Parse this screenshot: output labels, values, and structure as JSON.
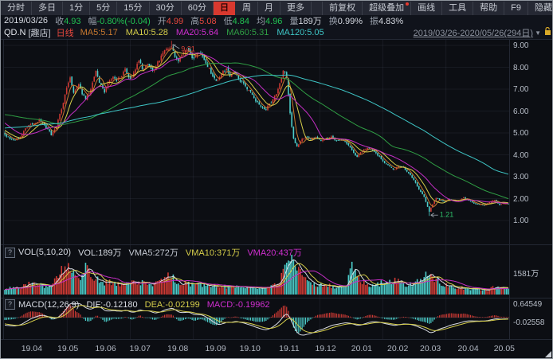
{
  "toolbar": {
    "periods": [
      "分时",
      "多日",
      "1分",
      "5分",
      "15分",
      "30分",
      "60分",
      "日",
      "周",
      "月",
      "更多"
    ],
    "active_period": "日",
    "right_items": [
      "前复权",
      "超级叠加",
      "画线",
      "工具",
      "帮助",
      "F9",
      "隐藏"
    ],
    "badge_on": "超级叠加"
  },
  "info_bar": {
    "date": "2019/03/26",
    "fields": [
      {
        "label": "收",
        "value": "4.93",
        "color": "green"
      },
      {
        "label": "幅",
        "value": "-0.80%(-0.04)",
        "color": "green"
      },
      {
        "label": "开",
        "value": "4.99",
        "color": "red"
      },
      {
        "label": "高",
        "value": "5.08",
        "color": "red"
      },
      {
        "label": "低",
        "value": "4.84",
        "color": "green"
      },
      {
        "label": "均",
        "value": "4.96",
        "color": "green"
      },
      {
        "label": "量",
        "value": "189万",
        "color": "white"
      },
      {
        "label": "换",
        "value": "0.99%",
        "color": "white"
      },
      {
        "label": "振",
        "value": "4.83%",
        "color": "white"
      }
    ]
  },
  "stock_header": {
    "symbol": "QD.N",
    "name": "[趣店]",
    "period_label": "日线",
    "ma_labels": [
      {
        "text": "MA5:5.17",
        "color": "#c8792f"
      },
      {
        "text": "MA10:5.28",
        "color": "#d6ce4a"
      },
      {
        "text": "MA20:5.64",
        "color": "#d02ed0"
      },
      {
        "text": "MA60:5.31",
        "color": "#2f9e44"
      },
      {
        "text": "MA120:5.05",
        "color": "#3ec6c6"
      }
    ],
    "date_range": "2019/03/26-2020/05/26(294日)",
    "dropdown_icon": "▼"
  },
  "volume_pane": {
    "help_icon": "?",
    "title": "VOL(5,10,20)",
    "labels": [
      {
        "text": "VOL:189万",
        "color": "#d6dae2"
      },
      {
        "text": "VMA5:272万",
        "color": "#c4c9d2"
      },
      {
        "text": "VMA10:371万",
        "color": "#d6ce4a"
      },
      {
        "text": "VMA20:437万",
        "color": "#d02ed0"
      }
    ],
    "right_label": "1581万"
  },
  "macd_pane": {
    "help_icon": "?",
    "title": "MACD(12,26,9)",
    "labels": [
      {
        "text": "DIF:-0.12180",
        "color": "#d8dbe2"
      },
      {
        "text": "DEA:-0.02199",
        "color": "#d6ce4a"
      },
      {
        "text": "MACD:-0.19962",
        "color": "#d02ed0"
      }
    ],
    "right_labels": [
      "0.64549",
      "-0.02558"
    ]
  },
  "chart_data": {
    "type": "candlestick",
    "title": "QD.N 趣店 日线 2019/03/26-2020/05/26",
    "days": 294,
    "price_axis": {
      "min": 1,
      "max": 9,
      "ticks": [
        "9.00",
        "8.00",
        "7.00",
        "6.00",
        "5.00",
        "4.00",
        "3.00",
        "2.00",
        "1.00"
      ]
    },
    "x_labels": [
      {
        "label": "19.04",
        "day": 4
      },
      {
        "label": "19.05",
        "day": 25
      },
      {
        "label": "19.06",
        "day": 47
      },
      {
        "label": "19.07",
        "day": 67
      },
      {
        "label": "19.08",
        "day": 89
      },
      {
        "label": "19.09",
        "day": 111
      },
      {
        "label": "19.10",
        "day": 131
      },
      {
        "label": "19.11",
        "day": 154
      },
      {
        "label": "19.12",
        "day": 175
      },
      {
        "label": "20.01",
        "day": 196
      },
      {
        "label": "20.02",
        "day": 217
      },
      {
        "label": "20.03",
        "day": 236
      },
      {
        "label": "20.04",
        "day": 258
      },
      {
        "label": "20.05",
        "day": 279
      }
    ],
    "first_candle": {
      "open": 4.99,
      "high": 5.08,
      "low": 4.84,
      "close": 4.93
    },
    "prehistory_anchors": [
      [
        -120,
        4.1
      ],
      [
        -90,
        4.5
      ],
      [
        -60,
        5.3
      ],
      [
        -40,
        6.2
      ],
      [
        -30,
        6.45
      ],
      [
        -20,
        6.1
      ],
      [
        -12,
        5.6
      ],
      [
        -6,
        5.15
      ],
      [
        -1,
        4.98
      ]
    ],
    "price_anchors": [
      [
        0,
        4.93
      ],
      [
        2,
        4.8
      ],
      [
        5,
        4.62
      ],
      [
        8,
        4.75
      ],
      [
        11,
        5.05
      ],
      [
        14,
        5.35
      ],
      [
        17,
        5.5
      ],
      [
        20,
        5.62
      ],
      [
        23,
        5.3
      ],
      [
        25,
        5.15
      ],
      [
        27,
        4.92
      ],
      [
        30,
        5.3
      ],
      [
        33,
        6.1
      ],
      [
        36,
        7.1
      ],
      [
        38,
        7.45
      ],
      [
        40,
        6.9
      ],
      [
        43,
        7.15
      ],
      [
        45,
        6.75
      ],
      [
        47,
        6.55
      ],
      [
        50,
        7.0
      ],
      [
        53,
        7.8
      ],
      [
        55,
        7.35
      ],
      [
        58,
        6.9
      ],
      [
        60,
        7.3
      ],
      [
        63,
        7.65
      ],
      [
        65,
        7.3
      ],
      [
        67,
        7.5
      ],
      [
        70,
        7.9
      ],
      [
        73,
        7.5
      ],
      [
        75,
        7.75
      ],
      [
        78,
        8.3
      ],
      [
        80,
        7.9
      ],
      [
        83,
        8.1
      ],
      [
        86,
        7.8
      ],
      [
        89,
        8.2
      ],
      [
        91,
        8.5
      ],
      [
        94,
        8.8
      ],
      [
        97,
        9.05
      ],
      [
        99,
        8.55
      ],
      [
        101,
        8.25
      ],
      [
        104,
        8.6
      ],
      [
        107,
        8.75
      ],
      [
        109,
        8.5
      ],
      [
        111,
        8.55
      ],
      [
        114,
        8.65
      ],
      [
        117,
        8.2
      ],
      [
        120,
        7.75
      ],
      [
        123,
        7.45
      ],
      [
        126,
        7.7
      ],
      [
        129,
        7.95
      ],
      [
        131,
        7.7
      ],
      [
        134,
        7.75
      ],
      [
        137,
        7.45
      ],
      [
        140,
        7.1
      ],
      [
        143,
        6.8
      ],
      [
        146,
        6.5
      ],
      [
        149,
        6.25
      ],
      [
        152,
        6.1
      ],
      [
        154,
        6.3
      ],
      [
        156,
        6.55
      ],
      [
        158,
        6.8
      ],
      [
        160,
        7.3
      ],
      [
        162,
        7.95
      ],
      [
        164,
        7.6
      ],
      [
        166,
        5.9
      ],
      [
        168,
        4.75
      ],
      [
        170,
        4.35
      ],
      [
        172,
        4.6
      ],
      [
        175,
        4.8
      ],
      [
        178,
        4.65
      ],
      [
        181,
        4.8
      ],
      [
        184,
        4.6
      ],
      [
        187,
        4.7
      ],
      [
        190,
        4.8
      ],
      [
        193,
        4.7
      ],
      [
        196,
        4.65
      ],
      [
        199,
        4.5
      ],
      [
        202,
        4.2
      ],
      [
        205,
        3.95
      ],
      [
        208,
        4.15
      ],
      [
        211,
        4.35
      ],
      [
        214,
        4.2
      ],
      [
        217,
        4.0
      ],
      [
        220,
        3.7
      ],
      [
        223,
        3.55
      ],
      [
        226,
        3.3
      ],
      [
        229,
        3.45
      ],
      [
        232,
        3.4
      ],
      [
        235,
        3.15
      ],
      [
        238,
        2.85
      ],
      [
        241,
        2.45
      ],
      [
        244,
        2.05
      ],
      [
        246,
        1.6
      ],
      [
        247,
        1.4
      ],
      [
        249,
        1.75
      ],
      [
        251,
        2.05
      ],
      [
        253,
        1.95
      ],
      [
        256,
        1.85
      ],
      [
        258,
        2.0
      ],
      [
        261,
        1.9
      ],
      [
        264,
        1.95
      ],
      [
        267,
        2.05
      ],
      [
        270,
        1.9
      ],
      [
        273,
        1.8
      ],
      [
        276,
        1.75
      ],
      [
        279,
        1.7
      ],
      [
        282,
        1.85
      ],
      [
        285,
        1.95
      ],
      [
        288,
        1.7
      ],
      [
        290,
        1.8
      ],
      [
        293,
        1.78
      ]
    ],
    "volume_anchors": [
      [
        0,
        189
      ],
      [
        3,
        300
      ],
      [
        8,
        250
      ],
      [
        14,
        420
      ],
      [
        20,
        380
      ],
      [
        26,
        300
      ],
      [
        31,
        650
      ],
      [
        34,
        1050
      ],
      [
        37,
        1250
      ],
      [
        40,
        800
      ],
      [
        44,
        550
      ],
      [
        48,
        1150
      ],
      [
        52,
        700
      ],
      [
        57,
        450
      ],
      [
        62,
        500
      ],
      [
        67,
        420
      ],
      [
        72,
        480
      ],
      [
        77,
        520
      ],
      [
        82,
        450
      ],
      [
        87,
        400
      ],
      [
        91,
        600
      ],
      [
        95,
        800
      ],
      [
        97,
        750
      ],
      [
        100,
        500
      ],
      [
        104,
        450
      ],
      [
        108,
        400
      ],
      [
        112,
        380
      ],
      [
        116,
        420
      ],
      [
        120,
        350
      ],
      [
        125,
        300
      ],
      [
        130,
        320
      ],
      [
        135,
        300
      ],
      [
        140,
        280
      ],
      [
        145,
        260
      ],
      [
        150,
        250
      ],
      [
        155,
        350
      ],
      [
        159,
        550
      ],
      [
        162,
        800
      ],
      [
        165,
        1350
      ],
      [
        167,
        1581
      ],
      [
        169,
        1200
      ],
      [
        172,
        800
      ],
      [
        175,
        550
      ],
      [
        179,
        420
      ],
      [
        183,
        380
      ],
      [
        187,
        350
      ],
      [
        191,
        330
      ],
      [
        195,
        300
      ],
      [
        199,
        450
      ],
      [
        202,
        1300
      ],
      [
        205,
        700
      ],
      [
        209,
        450
      ],
      [
        213,
        380
      ],
      [
        217,
        420
      ],
      [
        221,
        500
      ],
      [
        225,
        450
      ],
      [
        229,
        600
      ],
      [
        233,
        400
      ],
      [
        237,
        450
      ],
      [
        241,
        600
      ],
      [
        244,
        700
      ],
      [
        247,
        900
      ],
      [
        250,
        650
      ],
      [
        253,
        500
      ],
      [
        257,
        400
      ],
      [
        261,
        300
      ],
      [
        265,
        280
      ],
      [
        269,
        250
      ],
      [
        273,
        220
      ],
      [
        277,
        200
      ],
      [
        281,
        180
      ],
      [
        285,
        300
      ],
      [
        288,
        250
      ],
      [
        291,
        350
      ],
      [
        293,
        280
      ]
    ],
    "annotations": [
      {
        "kind": "high",
        "day": 97,
        "price": 9.21,
        "text": "9.21",
        "color": "#e0463c"
      },
      {
        "kind": "low",
        "day": 247,
        "price": 1.21,
        "text": "1.21",
        "color": "#2fc06a"
      }
    ],
    "colors": {
      "up": "#cf3a34",
      "down": "#4ccecb",
      "ma5": "#c8792f",
      "ma10": "#d6ce4a",
      "ma20": "#c52ec5",
      "ma60": "#2f9e44",
      "ma120": "#3ec6c6",
      "vma5": "#d8dbe2",
      "vma10": "#d6ce4a",
      "vma20": "#c52ec5",
      "dif": "#d8dbe2",
      "dea": "#d6ce4a",
      "grid": "#1d212b",
      "annotation_arrow": "#9aa2ab"
    }
  }
}
